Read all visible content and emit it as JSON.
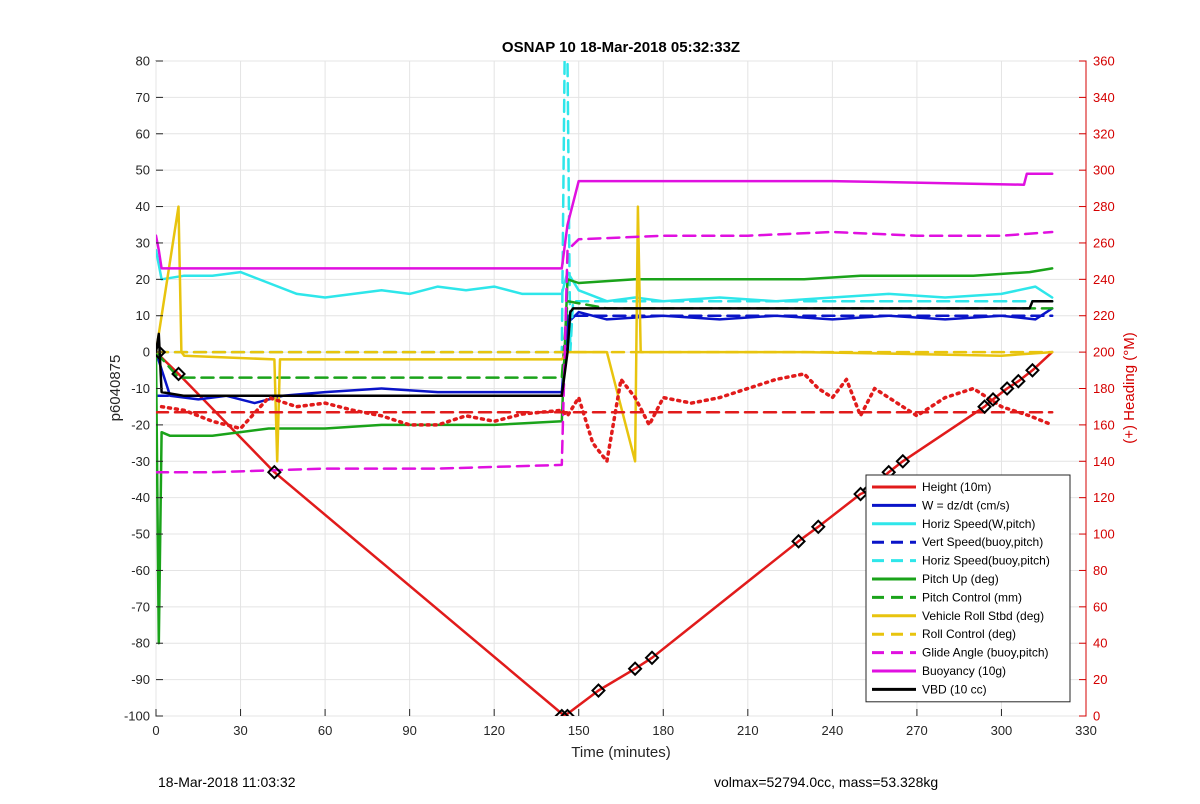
{
  "chart_data": {
    "type": "line",
    "title": "OSNAP 10 18-Mar-2018 05:32:33Z",
    "xlabel": "Time (minutes)",
    "ylabel": "p6040875",
    "ylabel_right": "(+) Heading (°M)",
    "xlim": [
      0,
      330
    ],
    "ylim": [
      -100,
      80
    ],
    "ylim_right": [
      0,
      360
    ],
    "x_ticks": [
      0,
      30,
      60,
      90,
      120,
      150,
      180,
      210,
      240,
      270,
      300,
      330
    ],
    "y_ticks": [
      -100,
      -90,
      -80,
      -70,
      -60,
      -50,
      -40,
      -30,
      -20,
      -10,
      0,
      10,
      20,
      30,
      40,
      50,
      60,
      70,
      80
    ],
    "y_ticks_right": [
      0,
      20,
      40,
      60,
      80,
      100,
      120,
      140,
      160,
      180,
      200,
      220,
      240,
      260,
      280,
      300,
      320,
      340,
      360
    ],
    "grid": true,
    "legend_position": "bottom-right",
    "series": [
      {
        "name": "Height (10m)",
        "color": "#e11b1b",
        "style": "solid",
        "x": [
          0,
          8,
          42,
          145,
          157,
          170,
          176,
          228,
          235,
          250,
          253,
          260,
          265,
          294,
          297,
          302,
          306,
          311,
          318
        ],
        "y": [
          0,
          -6,
          -33,
          -100,
          -93,
          -87,
          -84,
          -52,
          -48,
          -39,
          -38,
          -33,
          -30,
          -15,
          -13,
          -10,
          -8,
          -5,
          0
        ]
      },
      {
        "name": "W = dz/dt (cm/s)",
        "color": "#0a14c8",
        "style": "solid",
        "x": [
          0,
          5,
          15,
          25,
          35,
          45,
          60,
          80,
          100,
          120,
          144,
          146,
          150,
          160,
          180,
          200,
          220,
          240,
          260,
          280,
          300,
          312,
          318
        ],
        "y": [
          0,
          -12,
          -13,
          -12,
          -14,
          -12,
          -11,
          -10,
          -11,
          -11,
          -11,
          8,
          11,
          9,
          10,
          9,
          10,
          9,
          10,
          9,
          10,
          9,
          12
        ]
      },
      {
        "name": "Horiz Speed(W,pitch)",
        "color": "#2ee6ea",
        "style": "solid",
        "x": [
          0,
          2,
          10,
          20,
          30,
          40,
          50,
          60,
          70,
          80,
          90,
          100,
          110,
          120,
          130,
          144,
          146,
          150,
          160,
          170,
          180,
          200,
          220,
          240,
          260,
          280,
          300,
          312,
          318
        ],
        "y": [
          28,
          20,
          21,
          21,
          22,
          19,
          16,
          15,
          16,
          17,
          16,
          18,
          17,
          18,
          16,
          16,
          22,
          17,
          14,
          15,
          14,
          15,
          14,
          15,
          16,
          15,
          16,
          18,
          15
        ]
      },
      {
        "name": "Vert Speed(buoy,pitch)",
        "color": "#0a14c8",
        "style": "dashed",
        "x": [
          0,
          144,
          146,
          318
        ],
        "y": [
          -12,
          -12,
          10,
          10
        ]
      },
      {
        "name": "Horiz Speed(buoy,pitch)",
        "color": "#2ee6ea",
        "style": "dashed",
        "x": [
          0,
          144,
          145,
          146,
          147,
          148,
          318
        ],
        "y": [
          0,
          0,
          80,
          80,
          0,
          14,
          14
        ]
      },
      {
        "name": "Pitch Up (deg)",
        "color": "#1aa31a",
        "style": "solid",
        "x": [
          0,
          1,
          2,
          5,
          20,
          40,
          60,
          80,
          100,
          120,
          144,
          146,
          150,
          170,
          190,
          210,
          230,
          250,
          270,
          290,
          310,
          318
        ],
        "y": [
          0,
          -80,
          -22,
          -23,
          -23,
          -21,
          -21,
          -20,
          -20,
          -20,
          -19,
          20,
          19,
          20,
          20,
          20,
          20,
          21,
          21,
          21,
          22,
          23
        ]
      },
      {
        "name": "Pitch Control (mm)",
        "color": "#1aa31a",
        "style": "dashed",
        "x": [
          0,
          8,
          144,
          146,
          160,
          318
        ],
        "y": [
          0,
          -7,
          -7,
          14,
          12,
          12
        ]
      },
      {
        "name": "Vehicle Roll Stbd (deg)",
        "color": "#e8c40e",
        "style": "solid",
        "x": [
          0,
          8,
          9,
          10,
          42,
          43,
          44,
          144,
          146,
          160,
          170,
          171,
          172,
          230,
          300,
          318
        ],
        "y": [
          0,
          40,
          0,
          -1,
          -2,
          -30,
          -2,
          -2,
          0,
          0,
          -30,
          40,
          0,
          0,
          -1,
          0
        ]
      },
      {
        "name": "Roll Control (deg)",
        "color": "#e8c40e",
        "style": "dashed",
        "x": [
          0,
          144,
          146,
          318
        ],
        "y": [
          0,
          0,
          0,
          0
        ]
      },
      {
        "name": "Glide Angle (buoy,pitch)",
        "color": "#e010e0",
        "style": "dashed",
        "x": [
          0,
          20,
          60,
          100,
          144,
          146,
          150,
          180,
          210,
          240,
          270,
          300,
          318
        ],
        "y": [
          -33,
          -33,
          -32,
          -32,
          -31,
          28,
          31,
          32,
          32,
          33,
          32,
          32,
          33
        ]
      },
      {
        "name": "Buoyancy (10g)",
        "color": "#e010e0",
        "style": "solid",
        "x": [
          0,
          1,
          2,
          144,
          146,
          150,
          240,
          308,
          309,
          318
        ],
        "y": [
          32,
          28,
          23,
          23,
          35,
          47,
          47,
          46,
          49,
          49
        ]
      },
      {
        "name": "VBD (10 cc)",
        "color": "#000000",
        "style": "solid",
        "x": [
          0,
          1,
          2,
          10,
          144,
          146,
          147,
          148,
          310,
          311,
          318
        ],
        "y": [
          0,
          5,
          -11,
          -12,
          -12,
          0,
          11,
          12,
          12,
          14,
          14
        ]
      },
      {
        "name": "Heading",
        "axis": "right",
        "color": "#e11b1b",
        "style": "dotted",
        "x": [
          2,
          10,
          20,
          30,
          40,
          50,
          60,
          70,
          80,
          90,
          100,
          110,
          120,
          130,
          144,
          146,
          150,
          155,
          160,
          165,
          170,
          175,
          180,
          190,
          200,
          210,
          220,
          230,
          235,
          240,
          245,
          250,
          255,
          260,
          270,
          280,
          290,
          300,
          310,
          318
        ],
        "y": [
          170,
          168,
          162,
          158,
          175,
          170,
          172,
          168,
          165,
          160,
          160,
          165,
          162,
          166,
          168,
          165,
          175,
          150,
          140,
          185,
          175,
          160,
          175,
          172,
          175,
          180,
          185,
          188,
          180,
          175,
          185,
          165,
          180,
          175,
          165,
          175,
          180,
          170,
          165,
          160
        ]
      },
      {
        "name": "Heading target",
        "axis": "right",
        "color": "#e11b1b",
        "style": "dashed",
        "x": [
          0,
          318
        ],
        "y": [
          167,
          167
        ]
      }
    ],
    "markers": {
      "color": "#000000",
      "series": "Height (10m)",
      "x": [
        1,
        8,
        42,
        144,
        146,
        157,
        170,
        176,
        228,
        235,
        250,
        253,
        260,
        265,
        294,
        297,
        302,
        306,
        311
      ],
      "y": [
        0,
        -6,
        -33,
        -100,
        -100,
        -93,
        -87,
        -84,
        -52,
        -48,
        -39,
        -38,
        -33,
        -30,
        -15,
        -13,
        -10,
        -8,
        -5
      ]
    }
  },
  "footer": {
    "left": "18-Mar-2018 11:03:32",
    "right": "volmax=52794.0cc, mass=53.328kg"
  }
}
